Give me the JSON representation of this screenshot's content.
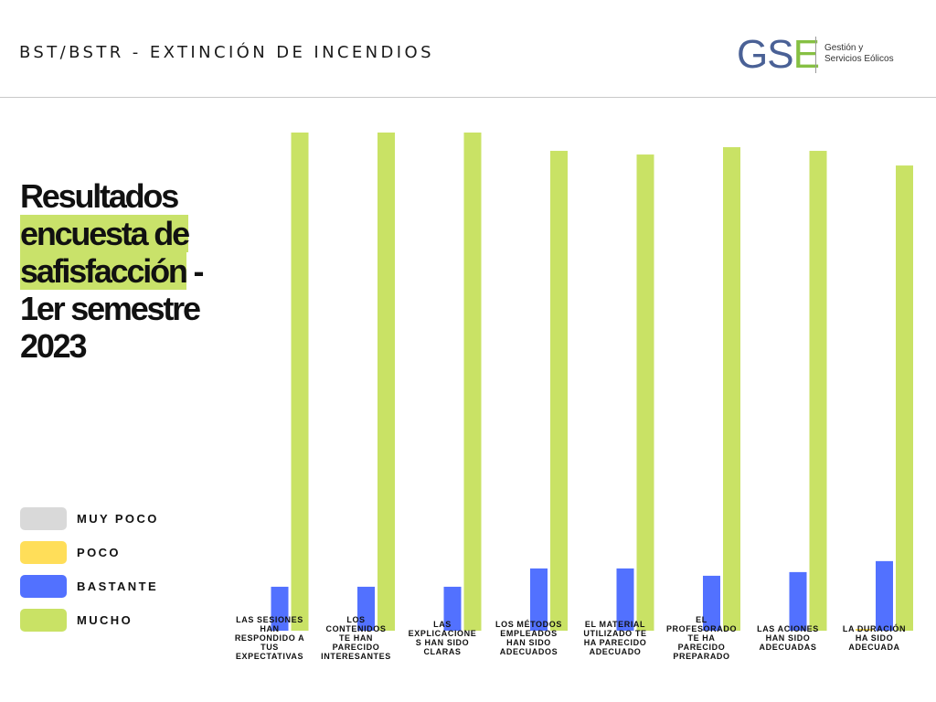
{
  "header": {
    "title": "BST/BSTR - EXTINCIÓN DE INCENDIOS",
    "logo_mark_gs": "GS",
    "logo_mark_e": "E",
    "logo_line1": "Gestión y",
    "logo_line2": "Servicios Eólicos"
  },
  "heading": {
    "line1": "Resultados",
    "line2": "encuesta de",
    "line3": "safisfacción",
    "line3_suffix": " -",
    "line4": "1er semestre",
    "line5": "2023"
  },
  "legend": [
    {
      "label": "MUY POCO",
      "color": "#d9d9d9"
    },
    {
      "label": "POCO",
      "color": "#ffde59"
    },
    {
      "label": "BASTANTE",
      "color": "#5271ff"
    },
    {
      "label": "MUCHO",
      "color": "#c9e265"
    }
  ],
  "chart_data": {
    "type": "bar",
    "categories": [
      [
        "LAS SESIONES",
        "HAN",
        "RESPONDIDO A",
        "TUS",
        "EXPECTATIVAS"
      ],
      [
        "LOS",
        "CONTENIDOS",
        "TE HAN",
        "PARECIDO",
        "INTERESANTES"
      ],
      [
        "LAS",
        "EXPLICACIONE",
        "S HAN SIDO",
        "CLARAS"
      ],
      [
        "LOS MÉTODOS",
        "EMPLEADOS",
        "HAN SIDO",
        "ADECUADOS"
      ],
      [
        "EL MATERIAL",
        "UTILIZADO TE",
        "HA PARECIDO",
        "ADECUADO"
      ],
      [
        "EL",
        "PROFESORADO",
        "TE HA",
        "PARECIDO",
        "PREPARADO"
      ],
      [
        "LAS ACIONES",
        "HAN SIDO",
        "ADECUADAS"
      ],
      [
        "LA DURACIÓN",
        "HA SIDO",
        "ADECUADA"
      ]
    ],
    "series": [
      {
        "name": "MUY POCO",
        "color": "#d9d9d9",
        "values": [
          0,
          0,
          0,
          0,
          0,
          0,
          0,
          0
        ]
      },
      {
        "name": "POCO",
        "color": "#ffde59",
        "values": [
          0,
          0,
          0,
          0,
          0,
          0,
          0,
          0.5
        ]
      },
      {
        "name": "BASTANTE",
        "color": "#5271ff",
        "values": [
          12,
          12,
          12,
          17,
          17,
          15,
          16,
          19
        ]
      },
      {
        "name": "MUCHO",
        "color": "#c9e265",
        "values": [
          136,
          136,
          136,
          131,
          130,
          132,
          131,
          127
        ]
      }
    ],
    "ylim": [
      0,
      136
    ],
    "grid": false,
    "legend_position": "left"
  }
}
